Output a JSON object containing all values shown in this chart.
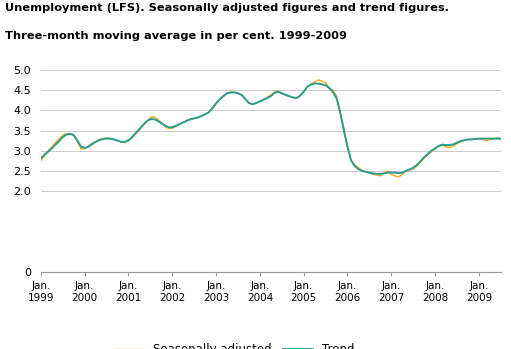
{
  "title_line1": "Unemployment (LFS). Seasonally adjusted figures and trend figures.",
  "title_line2": "Three-month moving average in per cent. 1999-2009",
  "ylim": [
    0,
    5.0
  ],
  "yticks": [
    0,
    2.0,
    2.5,
    3.0,
    3.5,
    4.0,
    4.5,
    5.0
  ],
  "seasonally_adjusted_color": "#F5A623",
  "trend_color": "#2A9D8F",
  "background_color": "#ffffff",
  "grid_color": "#cccccc",
  "legend_labels": [
    "Seasonally adjusted",
    "Trend"
  ],
  "seasonally_adjusted": [
    2.75,
    2.88,
    3.0,
    3.1,
    3.2,
    3.3,
    3.38,
    3.42,
    3.42,
    3.4,
    3.22,
    3.05,
    3.05,
    3.12,
    3.18,
    3.22,
    3.28,
    3.3,
    3.32,
    3.3,
    3.28,
    3.25,
    3.22,
    3.2,
    3.25,
    3.32,
    3.42,
    3.52,
    3.62,
    3.72,
    3.82,
    3.84,
    3.78,
    3.7,
    3.6,
    3.55,
    3.56,
    3.6,
    3.65,
    3.7,
    3.75,
    3.78,
    3.8,
    3.82,
    3.85,
    3.9,
    3.95,
    4.05,
    4.18,
    4.28,
    4.35,
    4.42,
    4.45,
    4.45,
    4.42,
    4.38,
    4.28,
    4.18,
    4.15,
    4.18,
    4.22,
    4.27,
    4.32,
    4.38,
    4.45,
    4.48,
    4.42,
    4.38,
    4.35,
    4.32,
    4.3,
    4.35,
    4.45,
    4.58,
    4.65,
    4.7,
    4.75,
    4.72,
    4.68,
    4.55,
    4.5,
    4.35,
    3.95,
    3.5,
    3.1,
    2.75,
    2.65,
    2.58,
    2.52,
    2.48,
    2.45,
    2.42,
    2.4,
    2.38,
    2.45,
    2.5,
    2.42,
    2.38,
    2.35,
    2.42,
    2.5,
    2.52,
    2.55,
    2.62,
    2.72,
    2.82,
    2.9,
    2.98,
    3.05,
    3.12,
    3.15,
    3.1,
    3.08,
    3.12,
    3.18,
    3.22,
    3.25,
    3.28,
    3.28,
    3.3,
    3.3,
    3.28,
    3.25,
    3.28,
    3.3,
    3.32,
    3.3
  ],
  "trend": [
    2.82,
    2.9,
    2.98,
    3.06,
    3.15,
    3.24,
    3.34,
    3.4,
    3.42,
    3.38,
    3.25,
    3.1,
    3.07,
    3.1,
    3.16,
    3.22,
    3.26,
    3.29,
    3.3,
    3.3,
    3.28,
    3.25,
    3.22,
    3.22,
    3.26,
    3.34,
    3.44,
    3.54,
    3.64,
    3.73,
    3.78,
    3.78,
    3.74,
    3.68,
    3.62,
    3.58,
    3.58,
    3.62,
    3.66,
    3.7,
    3.74,
    3.78,
    3.8,
    3.82,
    3.86,
    3.9,
    3.95,
    4.05,
    4.17,
    4.27,
    4.35,
    4.42,
    4.44,
    4.44,
    4.42,
    4.38,
    4.28,
    4.18,
    4.15,
    4.18,
    4.22,
    4.26,
    4.3,
    4.35,
    4.43,
    4.46,
    4.42,
    4.38,
    4.35,
    4.32,
    4.3,
    4.36,
    4.46,
    4.58,
    4.64,
    4.66,
    4.66,
    4.64,
    4.62,
    4.55,
    4.45,
    4.3,
    3.95,
    3.52,
    3.1,
    2.76,
    2.62,
    2.55,
    2.5,
    2.48,
    2.46,
    2.44,
    2.43,
    2.43,
    2.44,
    2.46,
    2.46,
    2.46,
    2.45,
    2.46,
    2.5,
    2.54,
    2.58,
    2.65,
    2.74,
    2.84,
    2.92,
    3.0,
    3.06,
    3.12,
    3.15,
    3.14,
    3.14,
    3.16,
    3.2,
    3.24,
    3.26,
    3.28,
    3.28,
    3.29,
    3.3,
    3.3,
    3.3,
    3.3,
    3.3,
    3.3,
    3.3
  ],
  "xtick_positions": [
    0,
    12,
    24,
    36,
    48,
    60,
    72,
    84,
    96,
    108,
    120
  ],
  "xtick_labels": [
    "Jan.\n1999",
    "Jan.\n2000",
    "Jan.\n2001",
    "Jan.\n2002",
    "Jan.\n2003",
    "Jan.\n2004",
    "Jan.\n2005",
    "Jan.\n2006",
    "Jan.\n2007",
    "Jan.\n2008",
    "Jan.\n2009"
  ]
}
